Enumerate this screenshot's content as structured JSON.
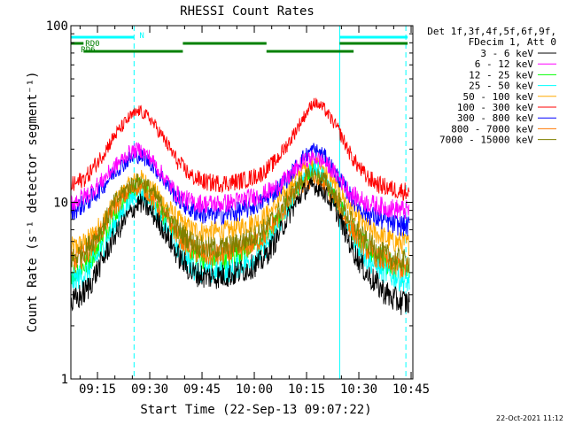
{
  "chart_data": {
    "type": "line",
    "title": "RHESSI Count Rates",
    "xlabel": "Start Time (22-Sep-13 09:07:22)",
    "ylabel": "Count Rate (s⁻¹ detector segment⁻¹)",
    "y_scale": "log",
    "ylim": [
      1,
      100
    ],
    "xlim": [
      "09:07:22",
      "10:45:30"
    ],
    "x_ticks": [
      "09:15",
      "09:30",
      "09:45",
      "10:00",
      "10:15",
      "10:30",
      "10:45"
    ],
    "y_ticks": [
      "1",
      "10",
      "100"
    ],
    "legend_header": [
      "Det 1f,3f,4f,5f,6f,9f,",
      "FDecim 1, Att 0"
    ],
    "legend_position": "right",
    "series": [
      {
        "name": "3 - 6 keV",
        "color": "#000000",
        "x": [
          "09:08",
          "09:12",
          "09:16",
          "09:20",
          "09:24",
          "09:27",
          "09:30",
          "09:34",
          "09:38",
          "09:42",
          "09:46",
          "09:50",
          "09:54",
          "09:58",
          "10:02",
          "10:06",
          "10:10",
          "10:14",
          "10:17",
          "10:20",
          "10:24",
          "10:28",
          "10:32",
          "10:36",
          "10:40",
          "10:44"
        ],
        "values": [
          2.7,
          3.2,
          4.5,
          6.5,
          8.5,
          10,
          9,
          7,
          5,
          4,
          3.8,
          3.8,
          3.9,
          4.2,
          4.6,
          6,
          8.5,
          11.5,
          12.5,
          11.5,
          8.5,
          5.5,
          4,
          3.3,
          2.8,
          2.7
        ]
      },
      {
        "name": "6 - 12 keV",
        "color": "#ff00ff",
        "x": [
          "09:08",
          "09:12",
          "09:16",
          "09:20",
          "09:24",
          "09:27",
          "09:30",
          "09:34",
          "09:38",
          "09:42",
          "09:46",
          "09:50",
          "09:54",
          "09:58",
          "10:02",
          "10:06",
          "10:10",
          "10:14",
          "10:17",
          "10:20",
          "10:24",
          "10:28",
          "10:32",
          "10:36",
          "10:40",
          "10:44"
        ],
        "values": [
          10,
          11,
          13,
          16,
          19,
          20,
          18,
          14,
          11,
          10,
          9.8,
          9.8,
          10,
          10.5,
          11,
          12,
          14,
          17,
          18,
          17,
          14,
          11,
          10,
          9.5,
          9.2,
          9
        ]
      },
      {
        "name": "12 - 25 keV",
        "color": "#00ff00",
        "x": [
          "09:08",
          "09:12",
          "09:16",
          "09:20",
          "09:24",
          "09:27",
          "09:30",
          "09:34",
          "09:38",
          "09:42",
          "09:46",
          "09:50",
          "09:54",
          "09:58",
          "10:02",
          "10:06",
          "10:10",
          "10:14",
          "10:17",
          "10:20",
          "10:24",
          "10:28",
          "10:32",
          "10:36",
          "10:40",
          "10:44"
        ],
        "values": [
          4,
          4.5,
          6,
          8.5,
          11,
          12.5,
          11,
          8.5,
          6.5,
          5.2,
          4.8,
          4.8,
          5,
          5.5,
          6,
          7.5,
          10,
          13.5,
          15,
          13.5,
          10,
          7,
          5.5,
          4.8,
          4.3,
          4
        ]
      },
      {
        "name": "25 - 50 keV",
        "color": "#00ffff",
        "x": [
          "09:08",
          "09:12",
          "09:16",
          "09:20",
          "09:24",
          "09:27",
          "09:30",
          "09:34",
          "09:38",
          "09:42",
          "09:46",
          "09:50",
          "09:54",
          "09:58",
          "10:02",
          "10:06",
          "10:10",
          "10:14",
          "10:17",
          "10:20",
          "10:24",
          "10:28",
          "10:32",
          "10:36",
          "10:40",
          "10:44"
        ],
        "values": [
          3.6,
          4,
          5.3,
          7.5,
          10,
          11.5,
          10,
          7.5,
          5.5,
          4.3,
          4,
          4,
          4.2,
          4.6,
          5.2,
          6.7,
          9.5,
          14,
          16,
          14,
          9.5,
          6.5,
          4.8,
          4.2,
          3.8,
          3.6
        ]
      },
      {
        "name": "50 - 100 keV",
        "color": "#ffaa00",
        "x": [
          "09:08",
          "09:12",
          "09:16",
          "09:20",
          "09:24",
          "09:27",
          "09:30",
          "09:34",
          "09:38",
          "09:42",
          "09:46",
          "09:50",
          "09:54",
          "09:58",
          "10:02",
          "10:06",
          "10:10",
          "10:14",
          "10:17",
          "10:20",
          "10:24",
          "10:28",
          "10:32",
          "10:36",
          "10:40",
          "10:44"
        ],
        "values": [
          5.5,
          6,
          7.5,
          10,
          12.5,
          14,
          12.5,
          10,
          8,
          7,
          6.8,
          6.8,
          7,
          7.5,
          8,
          9.5,
          12,
          15.5,
          17,
          15.5,
          12,
          9,
          7.2,
          6.5,
          6,
          5.8
        ]
      },
      {
        "name": "100 - 300 keV",
        "color": "#ff0000",
        "x": [
          "09:08",
          "09:12",
          "09:16",
          "09:20",
          "09:24",
          "09:27",
          "09:30",
          "09:34",
          "09:38",
          "09:42",
          "09:46",
          "09:50",
          "09:54",
          "09:58",
          "10:02",
          "10:06",
          "10:10",
          "10:14",
          "10:17",
          "10:20",
          "10:24",
          "10:28",
          "10:32",
          "10:36",
          "10:40",
          "10:44"
        ],
        "values": [
          12.5,
          14,
          18,
          24,
          30,
          33,
          30,
          23,
          17,
          14,
          13,
          12.8,
          13,
          13.5,
          14.5,
          17,
          22,
          30,
          37,
          34,
          26,
          18,
          14,
          12.5,
          11.8,
          11.5
        ]
      },
      {
        "name": "300 - 800 keV",
        "color": "#0000ff",
        "x": [
          "09:08",
          "09:12",
          "09:16",
          "09:20",
          "09:24",
          "09:27",
          "09:30",
          "09:34",
          "09:38",
          "09:42",
          "09:46",
          "09:50",
          "09:54",
          "09:58",
          "10:02",
          "10:06",
          "10:10",
          "10:14",
          "10:17",
          "10:20",
          "10:24",
          "10:28",
          "10:32",
          "10:36",
          "10:40",
          "10:44"
        ],
        "values": [
          9,
          10,
          12,
          15,
          17.5,
          18.5,
          17,
          13.5,
          10.5,
          9,
          8.5,
          8.5,
          8.7,
          9.2,
          10,
          11.5,
          14,
          18,
          20,
          18.5,
          14,
          10.5,
          8.7,
          8,
          7.5,
          7.3
        ]
      },
      {
        "name": "800 - 7000 keV",
        "color": "#ff7700",
        "x": [
          "09:08",
          "09:12",
          "09:16",
          "09:20",
          "09:24",
          "09:27",
          "09:30",
          "09:34",
          "09:38",
          "09:42",
          "09:46",
          "09:50",
          "09:54",
          "09:58",
          "10:02",
          "10:06",
          "10:10",
          "10:14",
          "10:17",
          "10:20",
          "10:24",
          "10:28",
          "10:32",
          "10:36",
          "10:40",
          "10:44"
        ],
        "values": [
          4.5,
          5.2,
          6.8,
          9.5,
          11.5,
          12.5,
          11,
          8.5,
          6.5,
          5.4,
          5,
          5,
          5.2,
          5.6,
          6.2,
          7.7,
          10,
          12.5,
          13.5,
          12.5,
          9.5,
          7,
          5.5,
          4.8,
          4.4,
          4.2
        ]
      },
      {
        "name": "7000 - 15000 keV",
        "color": "#808000",
        "x": [
          "09:08",
          "09:12",
          "09:16",
          "09:20",
          "09:24",
          "09:27",
          "09:30",
          "09:34",
          "09:38",
          "09:42",
          "09:46",
          "09:50",
          "09:54",
          "09:58",
          "10:02",
          "10:06",
          "10:10",
          "10:14",
          "10:17",
          "10:20",
          "10:24",
          "10:28",
          "10:32",
          "10:36",
          "10:40",
          "10:44"
        ],
        "values": [
          4.8,
          5.5,
          7,
          10,
          12.3,
          13.3,
          12,
          9.3,
          7,
          6,
          5.5,
          5.5,
          5.7,
          6.2,
          6.8,
          8.3,
          10.7,
          13.5,
          14.5,
          13.5,
          10.3,
          7.7,
          6,
          5.2,
          4.8,
          4.6
        ]
      }
    ],
    "attenuator_states": [
      {
        "label": "N",
        "color": "#00ffff",
        "segments": [
          [
            "09:07:22",
            "09:25:30"
          ],
          [
            "10:24:30",
            "10:44:00"
          ]
        ]
      },
      {
        "label": "RD0",
        "color": "#008000",
        "segments": [
          [
            "09:07:22",
            "09:11:00"
          ],
          [
            "09:39:30",
            "10:03:30"
          ],
          [
            "10:24:30",
            "10:44:00"
          ]
        ]
      },
      {
        "label": "RD6",
        "color": "#008000",
        "segments": [
          [
            "09:11:00",
            "09:39:30"
          ],
          [
            "10:03:30",
            "10:28:30"
          ]
        ]
      }
    ],
    "markers": [
      {
        "type": "solid",
        "color": "#00ffff",
        "x": "09:07:22"
      },
      {
        "type": "dashed",
        "color": "#00ffff",
        "x": "09:25:30"
      },
      {
        "type": "solid",
        "color": "#00ffff",
        "x": "10:24:30"
      },
      {
        "type": "dashed",
        "color": "#00ffff",
        "x": "10:43:30"
      }
    ]
  },
  "footer": {
    "date": "22-Oct-2021 11:12"
  }
}
